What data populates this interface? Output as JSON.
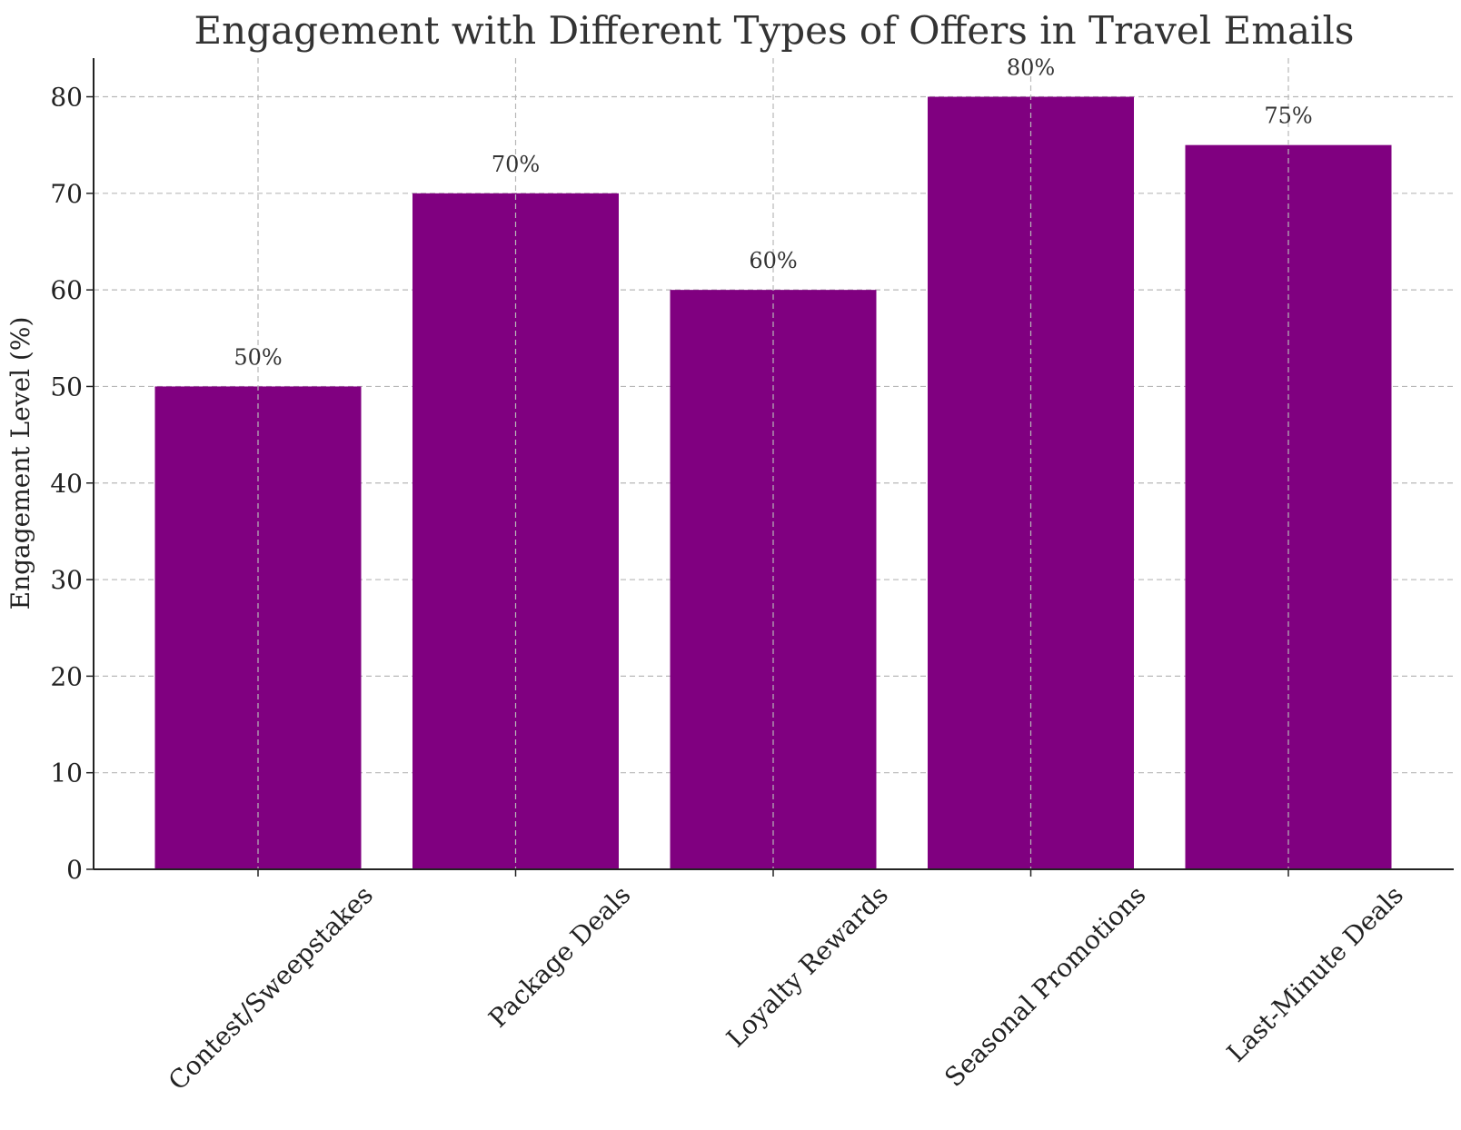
{
  "chart_data": {
    "type": "bar",
    "title": "Engagement with Different Types of Offers in Travel Emails",
    "xlabel": "",
    "ylabel": "Engagement Level (%)",
    "categories": [
      "Contest/Sweepstakes",
      "Package Deals",
      "Loyalty Rewards",
      "Seasonal Promotions",
      "Last-Minute Deals"
    ],
    "values": [
      50,
      70,
      60,
      80,
      75
    ],
    "data_labels": [
      "50%",
      "70%",
      "60%",
      "80%",
      "75%"
    ],
    "ylim": [
      0,
      84
    ],
    "yticks": [
      0,
      10,
      20,
      30,
      40,
      50,
      60,
      70,
      80
    ],
    "ytick_labels": [
      "0",
      "10",
      "20",
      "30",
      "40",
      "50",
      "60",
      "70",
      "80"
    ],
    "grid": true,
    "bar_color": "#800080"
  }
}
